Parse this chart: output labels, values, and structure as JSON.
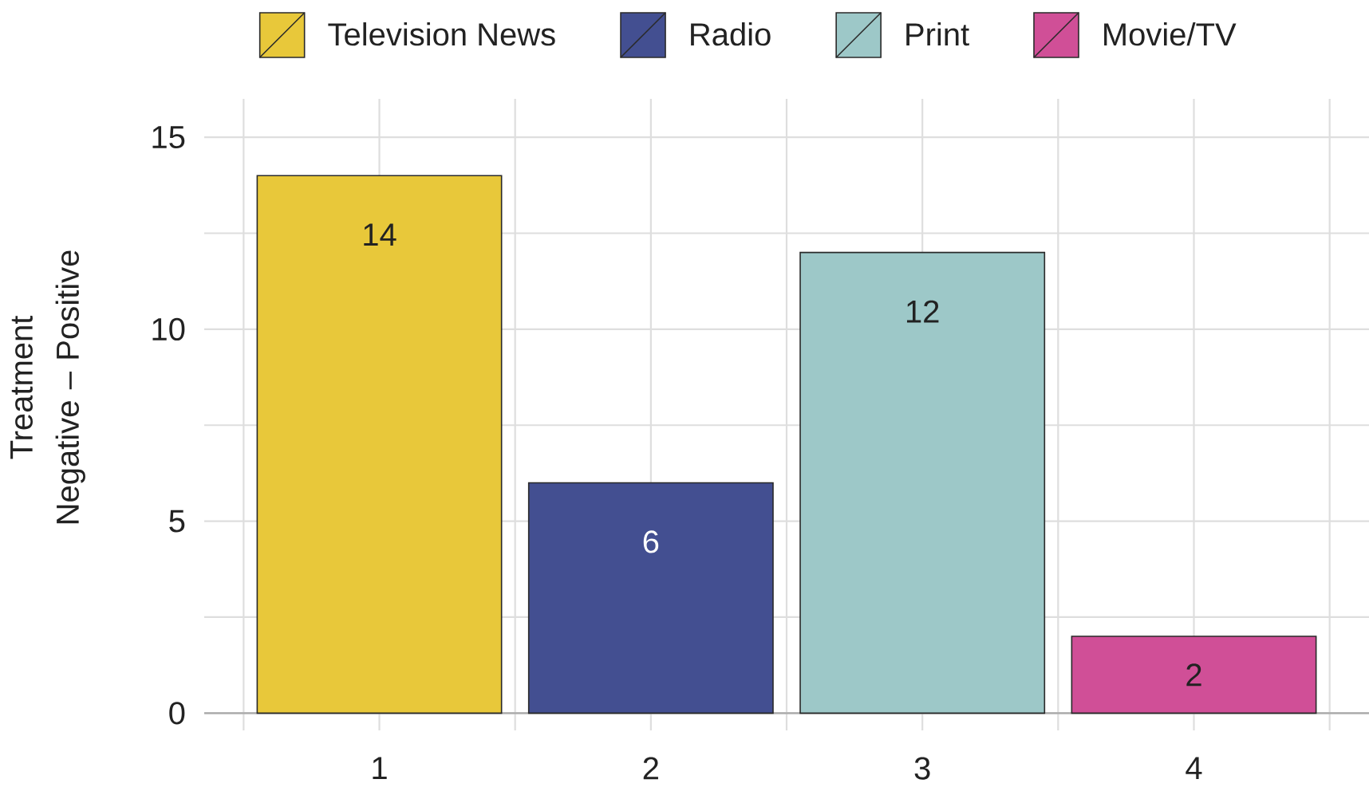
{
  "chart_data": {
    "type": "bar",
    "categories": [
      "1",
      "2",
      "3",
      "4"
    ],
    "series": [
      {
        "name": "Television News",
        "color": "#e8c83a",
        "values": [
          14,
          null,
          null,
          null
        ]
      },
      {
        "name": "Radio",
        "color": "#434f91",
        "values": [
          null,
          6,
          null,
          null
        ]
      },
      {
        "name": "Print",
        "color": "#9dc8c8",
        "values": [
          null,
          null,
          12,
          null
        ]
      },
      {
        "name": "Movie/TV",
        "color": "#d04f97",
        "values": [
          null,
          null,
          null,
          2
        ]
      }
    ],
    "ylabel": "Treatment Negative – Positive",
    "ylim": [
      -0.45,
      16
    ],
    "yticks": [
      0,
      {
        "value": 2.5,
        "label": null
      },
      5,
      {
        "value": 7.5,
        "label": null
      },
      10,
      {
        "value": 12.5,
        "label": null
      },
      15
    ],
    "grid": true,
    "legend": "top",
    "data_labels": true
  }
}
